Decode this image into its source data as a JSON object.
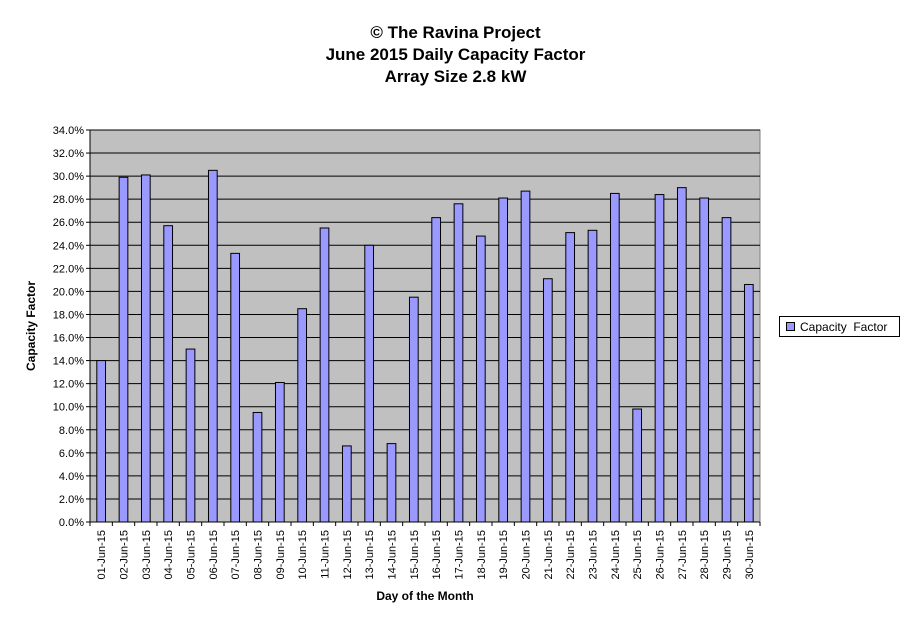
{
  "title_lines": [
    "© The Ravina Project",
    "June 2015 Daily Capacity  Factor",
    "Array Size 2.8 kW"
  ],
  "colors": {
    "plot_bg": "#c0c0c0",
    "bar_fill": "#9999ff",
    "bar_stroke": "#000000",
    "grid": "#000000"
  },
  "chart_data": {
    "type": "bar",
    "title": "© The Ravina Project / June 2015 Daily Capacity  Factor / Array Size 2.8 kW",
    "xlabel": "Day of the Month",
    "ylabel": "Capacity Factor",
    "ylim": [
      0,
      34
    ],
    "ytick_step": 2,
    "ytick_labels": [
      "0.0%",
      "2.0%",
      "4.0%",
      "6.0%",
      "8.0%",
      "10.0%",
      "12.0%",
      "14.0%",
      "16.0%",
      "18.0%",
      "20.0%",
      "22.0%",
      "24.0%",
      "26.0%",
      "28.0%",
      "30.0%",
      "32.0%",
      "34.0%"
    ],
    "grid": true,
    "legend_position": "right",
    "categories": [
      "01-Jun-15",
      "02-Jun-15",
      "03-Jun-15",
      "04-Jun-15",
      "05-Jun-15",
      "06-Jun-15",
      "07-Jun-15",
      "08-Jun-15",
      "09-Jun-15",
      "10-Jun-15",
      "11-Jun-15",
      "12-Jun-15",
      "13-Jun-15",
      "14-Jun-15",
      "15-Jun-15",
      "16-Jun-15",
      "17-Jun-15",
      "18-Jun-15",
      "19-Jun-15",
      "20-Jun-15",
      "21-Jun-15",
      "22-Jun-15",
      "23-Jun-15",
      "24-Jun-15",
      "25-Jun-15",
      "26-Jun-15",
      "27-Jun-15",
      "28-Jun-15",
      "29-Jun-15",
      "30-Jun-15"
    ],
    "series": [
      {
        "name": "Capacity  Factor",
        "values": [
          14.0,
          29.9,
          30.1,
          25.7,
          15.0,
          30.5,
          23.3,
          9.5,
          12.1,
          18.5,
          25.5,
          6.6,
          24.0,
          6.8,
          19.5,
          26.4,
          27.6,
          24.8,
          28.1,
          28.7,
          21.1,
          25.1,
          25.3,
          28.5,
          9.8,
          28.4,
          29.0,
          28.1,
          26.4,
          20.6
        ]
      }
    ]
  }
}
